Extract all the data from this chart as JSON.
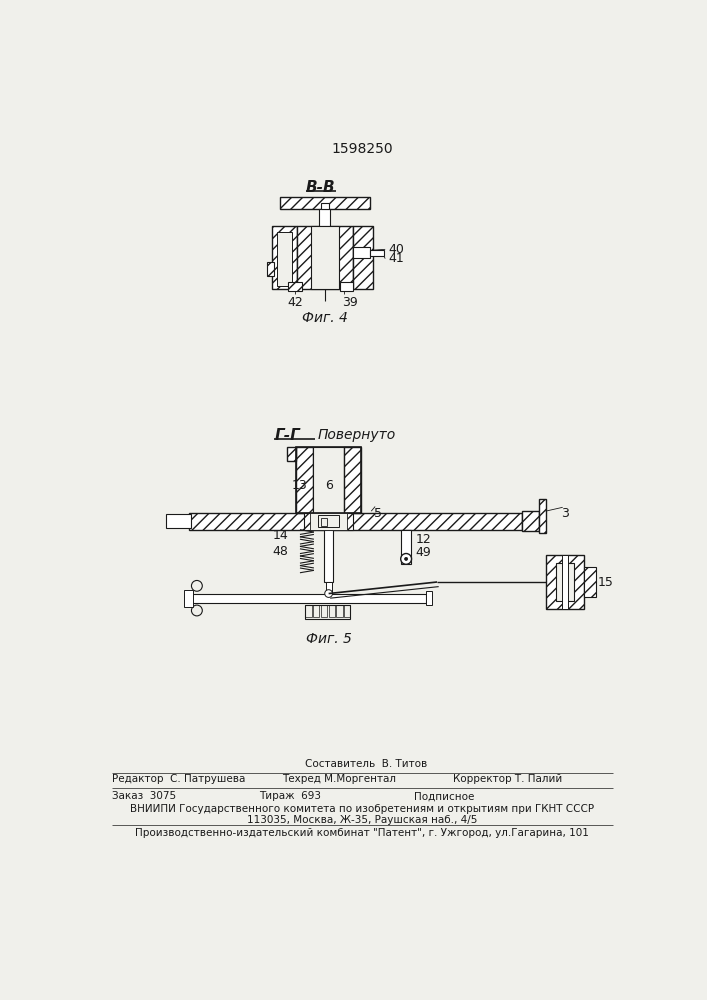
{
  "patent_number": "1598250",
  "bg_color": "#f0f0eb",
  "line_color": "#1a1a1a",
  "fig4_label": "В-В",
  "fig4_caption": "Фиг. 4",
  "fig5_label": "Г-Г",
  "fig5_sublabel": "Повернуто",
  "fig5_caption": "Фиг. 5",
  "footer_sestavitel_label": "Составитель  В. Титов",
  "footer_line1_left": "Редактор  С. Патрушева",
  "footer_line1_center": "Техред М.Моргентал",
  "footer_line1_right": "Корректор Т. Палий",
  "footer_zakaz": "Заказ  3075",
  "footer_tirazh": "Тираж  693",
  "footer_podpisnoe": "Подписное",
  "footer_vniiipi": "ВНИИПИ Государственного комитета по изобретениям и открытиям при ГКНТ СССР",
  "footer_address": "113035, Москва, Ж-35, Раушская наб., 4/5",
  "footer_publisher": "Производственно-издательский комбинат \"Патент\", г. Ужгород, ул.Гагарина, 101"
}
